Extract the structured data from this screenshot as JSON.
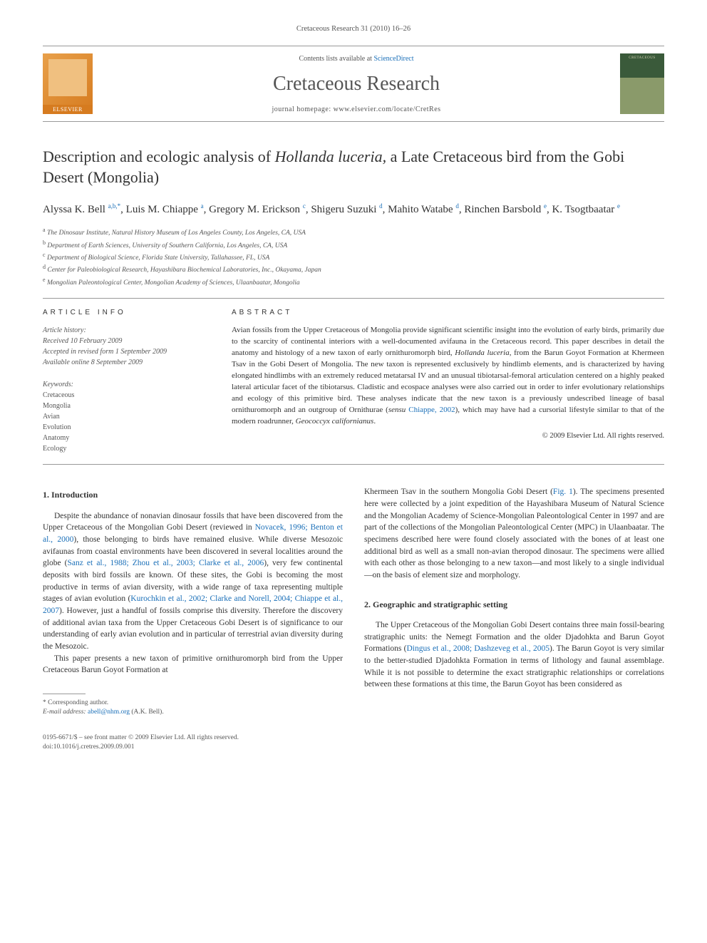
{
  "journal_ref": "Cretaceous Research 31 (2010) 16–26",
  "header": {
    "elsevier": "ELSEVIER",
    "contents_prefix": "Contents lists available at ",
    "contents_link": "ScienceDirect",
    "journal_title": "Cretaceous Research",
    "homepage_prefix": "journal homepage: ",
    "homepage_url": "www.elsevier.com/locate/CretRes"
  },
  "title_pre": "Description and ecologic analysis of ",
  "title_italic": "Hollanda luceria,",
  "title_post": " a Late Cretaceous bird from the Gobi Desert (Mongolia)",
  "authors_html": "Alyssa K. Bell <sup>a,b,*</sup>, Luis M. Chiappe <sup>a</sup>, Gregory M. Erickson <sup>c</sup>, Shigeru Suzuki <sup>d</sup>, Mahito Watabe <sup>d</sup>, Rinchen Barsbold <sup>e</sup>, K. Tsogtbaatar <sup>e</sup>",
  "affiliations": [
    "a The Dinosaur Institute, Natural History Museum of Los Angeles County, Los Angeles, CA, USA",
    "b Department of Earth Sciences, University of Southern California, Los Angeles, CA, USA",
    "c Department of Biological Science, Florida State University, Tallahassee, FL, USA",
    "d Center for Paleobiological Research, Hayashibara Biochemical Laboratories, Inc., Okayama, Japan",
    "e Mongolian Paleontological Center, Mongolian Academy of Sciences, Ulaanbaatar, Mongolia"
  ],
  "article_info": {
    "label": "ARTICLE INFO",
    "history_label": "Article history:",
    "received": "Received 10 February 2009",
    "accepted": "Accepted in revised form 1 September 2009",
    "online": "Available online 8 September 2009",
    "keywords_label": "Keywords:",
    "keywords": [
      "Cretaceous",
      "Mongolia",
      "Avian",
      "Evolution",
      "Anatomy",
      "Ecology"
    ]
  },
  "abstract": {
    "label": "ABSTRACT",
    "text_pre": "Avian fossils from the Upper Cretaceous of Mongolia provide significant scientific insight into the evolution of early birds, primarily due to the scarcity of continental interiors with a well-documented avifauna in the Cretaceous record. This paper describes in detail the anatomy and histology of a new taxon of early ornithuromorph bird, ",
    "taxon": "Hollanda luceria",
    "text_mid": ", from the Barun Goyot Formation at Khermeen Tsav in the Gobi Desert of Mongolia. The new taxon is represented exclusively by hindlimb elements, and is characterized by having elongated hindlimbs with an extremely reduced metatarsal IV and an unusual tibiotarsal-femoral articulation centered on a highly peaked lateral articular facet of the tibiotarsus. Cladistic and ecospace analyses were also carried out in order to infer evolutionary relationships and ecology of this primitive bird. These analyses indicate that the new taxon is a previously undescribed lineage of basal ornithuromorph and an outgroup of Ornithurae (",
    "sensu": "sensu ",
    "ref": "Chiappe, 2002",
    "text_post": "), which may have had a cursorial lifestyle similar to that of the modern roadrunner, ",
    "species": "Geococcyx californianus",
    "period": ".",
    "copyright": "© 2009 Elsevier Ltd. All rights reserved."
  },
  "section1": {
    "heading": "1. Introduction",
    "p1_a": "Despite the abundance of nonavian dinosaur fossils that have been discovered from the Upper Cretaceous of the Mongolian Gobi Desert (reviewed in ",
    "p1_ref1": "Novacek, 1996; Benton et al., 2000",
    "p1_b": "), those belonging to birds have remained elusive. While diverse Mesozoic avifaunas from coastal environments have been discovered in several localities around the globe (",
    "p1_ref2": "Sanz et al., 1988; Zhou et al., 2003; Clarke et al., 2006",
    "p1_c": "), very few continental deposits with bird fossils are known. Of these sites, the Gobi is becoming the most productive in terms of avian diversity, with a wide range of taxa representing multiple stages of avian evolution (",
    "p1_ref3": "Kurochkin et al., 2002; Clarke and Norell, 2004; Chiappe et al., 2007",
    "p1_d": "). However, just a handful of fossils comprise this diversity. Therefore the discovery of additional avian taxa from the Upper Cretaceous Gobi Desert is of significance to our understanding of early avian evolution and in particular of terrestrial avian diversity during the Mesozoic.",
    "p2": "This paper presents a new taxon of primitive ornithuromorph bird from the Upper Cretaceous Barun Goyot Formation at",
    "col2_a": "Khermeen Tsav in the southern Mongolia Gobi Desert (",
    "col2_figref": "Fig. 1",
    "col2_b": "). The specimens presented here were collected by a joint expedition of the Hayashibara Museum of Natural Science and the Mongolian Academy of Science-Mongolian Paleontological Center in 1997 and are part of the collections of the Mongolian Paleontological Center (MPC) in Ulaanbaatar. The specimens described here were found closely associated with the bones of at least one additional bird as well as a small non-avian theropod dinosaur. The specimens were allied with each other as those belonging to a new taxon—and most likely to a single individual—on the basis of element size and morphology."
  },
  "section2": {
    "heading": "2. Geographic and stratigraphic setting",
    "p1_a": "The Upper Cretaceous of the Mongolian Gobi Desert contains three main fossil-bearing stratigraphic units: the Nemegt Formation and the older Djadohkta and Barun Goyot Formations (",
    "p1_ref1": "Dingus et al., 2008; Dashzeveg et al., 2005",
    "p1_b": "). The Barun Goyot is very similar to the better-studied Djadohkta Formation in terms of lithology and faunal assemblage. While it is not possible to determine the exact stratigraphic relationships or correlations between these formations at this time, the Barun Goyot has been considered as"
  },
  "footnote": {
    "corr": "* Corresponding author.",
    "email_label": "E-mail address: ",
    "email": "abell@nhm.org",
    "email_name": " (A.K. Bell)."
  },
  "footer": {
    "line1": "0195-6671/$ – see front matter © 2009 Elsevier Ltd. All rights reserved.",
    "line2": "doi:10.1016/j.cretres.2009.09.001"
  }
}
